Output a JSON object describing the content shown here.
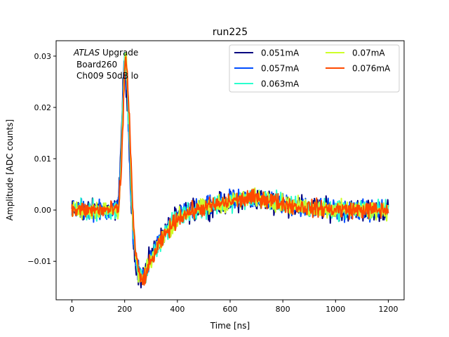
{
  "chart_data": {
    "type": "line",
    "title": "run225",
    "xlabel": "Time [ns]",
    "ylabel": "Amplitude [ADC counts]",
    "xlim": [
      -60,
      1260
    ],
    "ylim": [
      -0.0175,
      0.033
    ],
    "xticks": [
      0,
      200,
      400,
      600,
      800,
      1000,
      1200
    ],
    "yticks": [
      -0.01,
      0.0,
      0.01,
      0.02,
      0.03
    ],
    "xtick_labels": [
      "0",
      "200",
      "400",
      "600",
      "800",
      "1000",
      "1200"
    ],
    "ytick_labels": [
      "−0.01",
      "0.00",
      "0.01",
      "0.02",
      "0.03"
    ],
    "grid": false,
    "legend_position": "top-right",
    "legend_columns": 2,
    "annotation": {
      "italic": "ATLAS",
      "line1_rest": " Upgrade",
      "line2": "Board260",
      "line3": "Ch009 50dB lo"
    },
    "pulse_shape": {
      "t": [
        0,
        175,
        185,
        195,
        200,
        205,
        215,
        225,
        235,
        250,
        265,
        280,
        300,
        330,
        360,
        400,
        450,
        500,
        560,
        620,
        680,
        720,
        760,
        800,
        850,
        900,
        1000,
        1100,
        1200
      ],
      "v": [
        0.0,
        0.0,
        0.008,
        0.022,
        0.029,
        0.028,
        0.018,
        0.004,
        -0.006,
        -0.012,
        -0.0135,
        -0.012,
        -0.0095,
        -0.0065,
        -0.004,
        -0.0015,
        -0.0002,
        0.0004,
        0.0012,
        0.0018,
        0.0022,
        0.0022,
        0.0018,
        0.0012,
        0.0007,
        0.0004,
        0.0001,
        0.0,
        0.0
      ]
    },
    "series": [
      {
        "name": "0.051mA",
        "color": "#00007f",
        "noise": 0.0018,
        "scale": 0.98
      },
      {
        "name": "0.057mA",
        "color": "#004dff",
        "noise": 0.0017,
        "scale": 1.0
      },
      {
        "name": "0.063mA",
        "color": "#29ffce",
        "noise": 0.0016,
        "scale": 1.01
      },
      {
        "name": "0.07mA",
        "color": "#ceff29",
        "noise": 0.0015,
        "scale": 1.02
      },
      {
        "name": "0.076mA",
        "color": "#ff4a00",
        "noise": 0.0014,
        "scale": 1.03
      }
    ]
  }
}
